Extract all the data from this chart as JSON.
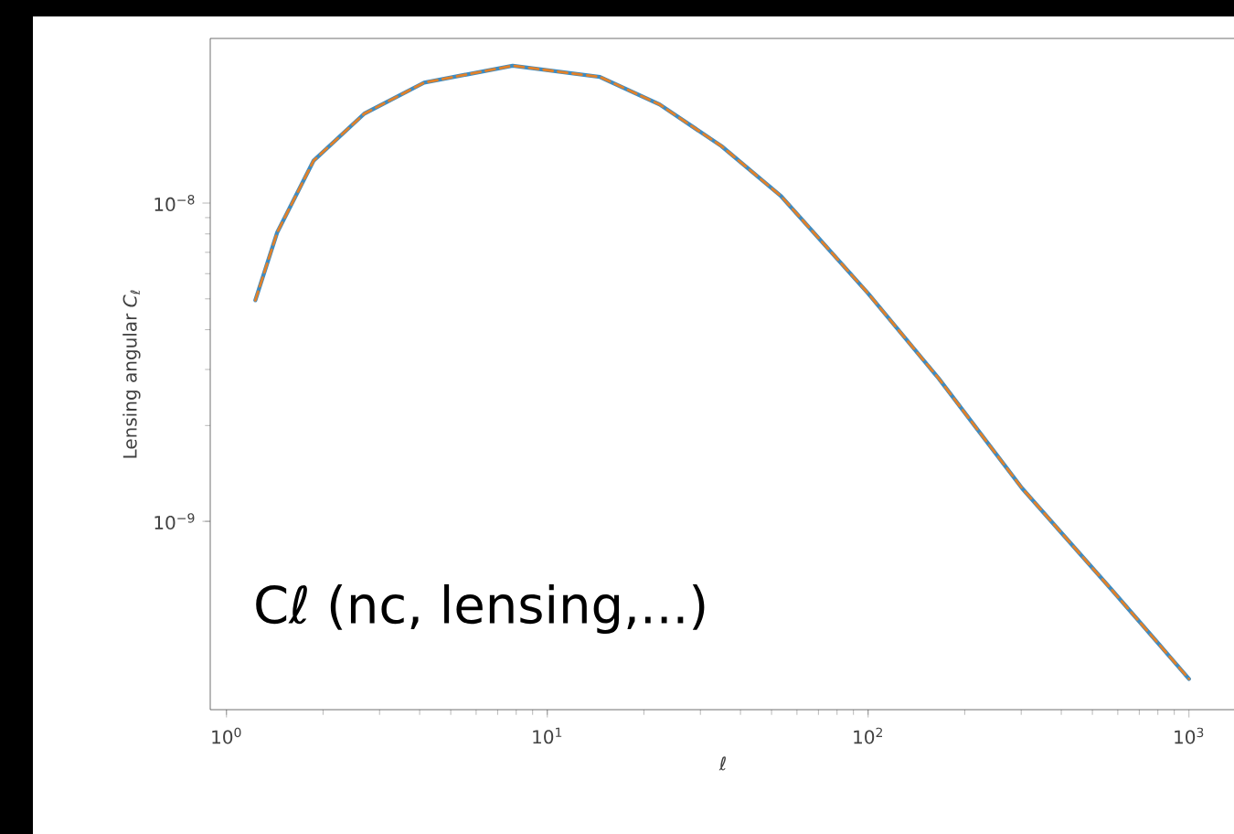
{
  "chart_data": {
    "type": "line",
    "xlabel": "ℓ",
    "ylabel": "Lensing angular *C*$_{ℓ}$",
    "annotations": [
      "Cℓ (nc, lensing,...)"
    ],
    "log": "xy",
    "xlim": [
      0.89,
      1400
    ],
    "ylim": [
      2.56e-10,
      3.29e-08
    ],
    "xticks": [
      {
        "value": 1,
        "label": "10$^{0}$"
      },
      {
        "value": 10,
        "label": "10$^{1}$"
      },
      {
        "value": 100,
        "label": "10$^{2}$"
      },
      {
        "value": 1000,
        "label": "10$^{3}$"
      }
    ],
    "yticks": [
      {
        "value": 1e-09,
        "label": "10$^{−9}$"
      },
      {
        "value": 1e-08,
        "label": "10$^{−8}$"
      }
    ],
    "x": [
      1.23,
      1.44,
      1.87,
      2.69,
      4.13,
      7.8,
      14.6,
      22.4,
      34.9,
      53.6,
      100,
      166,
      302,
      578,
      1000
    ],
    "series": [
      {
        "color": "#1f77b4",
        "line_style": "solid",
        "values": [
          4.95e-09,
          8.1e-09,
          1.36e-08,
          1.91e-08,
          2.39e-08,
          2.7e-08,
          2.49e-08,
          2.04e-08,
          1.51e-08,
          1.05e-08,
          5.2e-09,
          2.81e-09,
          1.27e-09,
          6.05e-10,
          3.2e-10
        ]
      },
      {
        "color": "#ff7f0e",
        "line_style": "dashed",
        "values": [
          4.95e-09,
          8.1e-09,
          1.36e-08,
          1.91e-08,
          2.39e-08,
          2.7e-08,
          2.49e-08,
          2.04e-08,
          1.51e-08,
          1.05e-08,
          5.2e-09,
          2.81e-09,
          1.27e-09,
          6.05e-10,
          3.2e-10
        ]
      }
    ],
    "grid": false
  }
}
